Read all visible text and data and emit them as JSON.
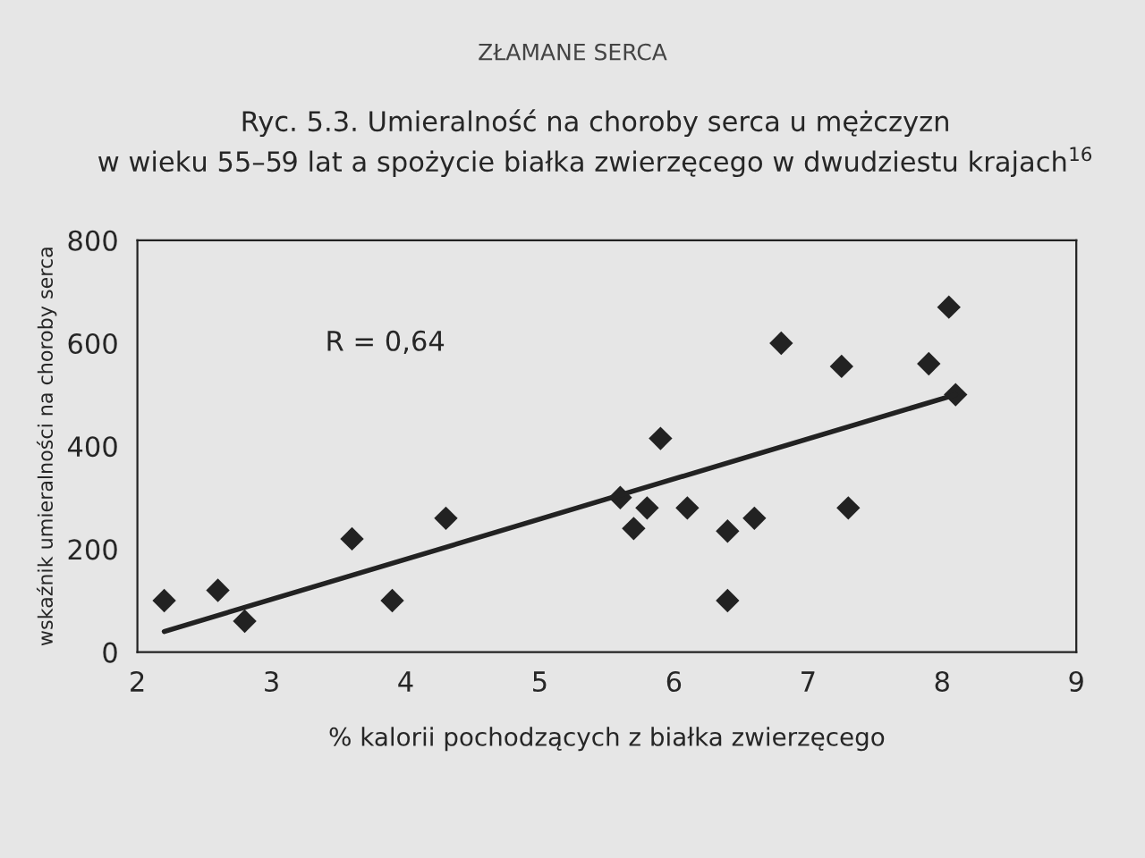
{
  "chart_data": {
    "type": "scatter",
    "title": "Ryc. 5.3. Umieralność na choroby serca u mężczyzn\nw wieku 55–59 lat a spożycie białka zwierzęcego w dwudziestu krajach$^{16}$",
    "subtitle": "ZŁAMANE SERCA",
    "xlabel": "% kalorii pochodzących z białka zwierzęcego",
    "ylabel": "wskaźnik umieralności na choroby serca",
    "series": [
      {
        "color": "#222222",
        "marker": "diamond",
        "x": [
          2.2,
          2.6,
          2.8,
          3.6,
          3.9,
          4.3,
          5.6,
          5.7,
          5.8,
          5.9,
          6.1,
          6.4,
          6.4,
          6.6,
          6.8,
          7.25,
          7.3,
          7.9,
          8.05,
          8.1
        ],
        "values": [
          100,
          120,
          60,
          220,
          100,
          260,
          300,
          240,
          280,
          415,
          280,
          235,
          100,
          260,
          600,
          555,
          280,
          560,
          670,
          500
        ]
      },
      {
        "type": "line",
        "color": "#222222",
        "x": [
          2.2,
          8.1
        ],
        "values": [
          40,
          500
        ]
      }
    ],
    "annotations": [
      "R = 0,64"
    ],
    "xlim": [
      2,
      9
    ],
    "xticks": [
      2,
      3,
      4,
      5,
      6,
      7,
      8,
      9
    ],
    "ylim": [
      0,
      800
    ],
    "yticks": [
      0,
      200,
      400,
      600,
      800
    ],
    "grid": false
  }
}
